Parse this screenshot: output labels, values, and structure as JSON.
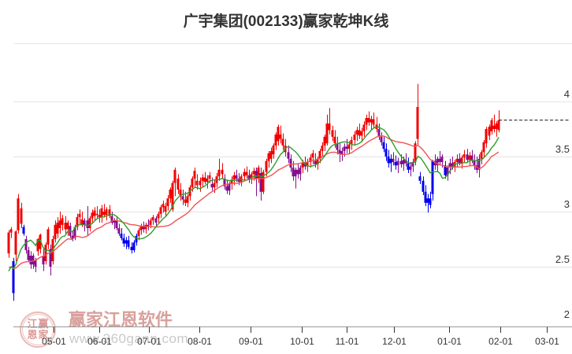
{
  "title": "广宇集团(002133)赢家乾坤K线",
  "watermark": {
    "logo_chars": [
      "江",
      "赢",
      "恩",
      "家"
    ],
    "brand": "赢家江恩软件",
    "url": "www.360gann.com"
  },
  "chart_data": {
    "type": "candlestick",
    "title": "广宇集团(002133)赢家乾坤K线",
    "ylabel": "",
    "xlabel": "",
    "ylim": [
      1.96,
      4.53
    ],
    "grid": true,
    "y_ticks": [
      {
        "label": "4",
        "p": 4
      },
      {
        "label": "3.5",
        "p": 3.5
      },
      {
        "label": "3",
        "p": 3
      },
      {
        "label": "2.5",
        "p": 2.5
      },
      {
        "label": "2",
        "p": 2
      }
    ],
    "x_ticks": [
      [
        "05-01",
        18.3
      ],
      [
        "06-01",
        37
      ],
      [
        "07-01",
        57.2
      ],
      [
        "08-01",
        77.8
      ],
      [
        "09-01",
        98.7
      ],
      [
        "10-01",
        119.6
      ],
      [
        "11-01",
        138
      ],
      [
        "12-01",
        157.2
      ],
      [
        "01-01",
        179.7
      ],
      [
        "02-01",
        200.6
      ],
      [
        "03-01",
        219.6
      ]
    ],
    "last_price": 3.83,
    "ma_periods": {
      "short": 10,
      "long": 25
    },
    "ma_seed_closes_offchart": [
      3.0,
      2.95,
      2.9,
      2.85,
      2.8,
      2.76,
      2.72,
      2.68,
      2.64,
      2.6,
      2.56,
      2.54,
      2.52,
      2.5,
      2.48,
      2.46,
      2.44,
      2.42,
      2.4,
      2.38,
      2.4,
      2.42,
      2.44,
      2.42,
      2.4,
      2.42,
      2.44,
      2.42,
      2.4,
      2.42
    ],
    "colors": {
      "up": "#f20000",
      "down": "#0000f0",
      "transition": "#830e8e",
      "ma_short": "#2f9e2f",
      "ma_long": "#f15454",
      "grid": "#e4e4e4",
      "axis": "#999999",
      "tick": "#333333",
      "label": "#333333",
      "last_price_line": "#111111"
    },
    "candles": [
      [
        2.62,
        2.83,
        2.58,
        2.81,
        "r"
      ],
      [
        2.81,
        2.86,
        2.76,
        2.84,
        "r"
      ],
      [
        2.55,
        2.58,
        2.19,
        2.26,
        "b"
      ],
      [
        2.61,
        2.83,
        2.55,
        2.82,
        "r"
      ],
      [
        2.83,
        3.16,
        2.8,
        3.12,
        "r"
      ],
      [
        2.89,
        3.08,
        2.85,
        3.03,
        "r"
      ],
      [
        2.86,
        2.88,
        2.78,
        2.8,
        "b"
      ],
      [
        2.75,
        2.78,
        2.62,
        2.65,
        "p"
      ],
      [
        2.65,
        2.68,
        2.54,
        2.56,
        "p"
      ],
      [
        2.6,
        2.64,
        2.48,
        2.52,
        "p"
      ],
      [
        2.52,
        2.62,
        2.48,
        2.6,
        "p"
      ],
      [
        2.5,
        2.58,
        2.45,
        2.56,
        "p"
      ],
      [
        2.64,
        2.76,
        2.6,
        2.75,
        "r"
      ],
      [
        2.66,
        2.8,
        2.62,
        2.79,
        "r"
      ],
      [
        2.6,
        2.66,
        2.46,
        2.52,
        "p"
      ],
      [
        2.55,
        2.72,
        2.52,
        2.7,
        "r"
      ],
      [
        2.7,
        2.86,
        2.66,
        2.84,
        "r"
      ],
      [
        2.66,
        2.7,
        2.42,
        2.5,
        "p"
      ],
      [
        2.55,
        2.78,
        2.52,
        2.75,
        "r"
      ],
      [
        2.75,
        2.92,
        2.72,
        2.88,
        "r"
      ],
      [
        2.8,
        2.95,
        2.76,
        2.9,
        "r"
      ],
      [
        2.85,
        3.0,
        2.8,
        2.92,
        "r"
      ],
      [
        2.88,
        2.97,
        2.83,
        2.94,
        "r"
      ],
      [
        2.9,
        2.96,
        2.8,
        2.84,
        "r"
      ],
      [
        2.84,
        2.92,
        2.78,
        2.9,
        "r"
      ],
      [
        2.87,
        2.9,
        2.76,
        2.78,
        "p"
      ],
      [
        2.78,
        2.83,
        2.73,
        2.75,
        "p"
      ],
      [
        2.76,
        2.88,
        2.74,
        2.86,
        "p"
      ],
      [
        2.86,
        2.98,
        2.83,
        2.95,
        "r"
      ],
      [
        2.95,
        3.02,
        2.88,
        2.98,
        "r"
      ],
      [
        2.93,
        3.0,
        2.86,
        2.88,
        "r"
      ],
      [
        2.88,
        2.94,
        2.82,
        2.92,
        "p"
      ],
      [
        2.92,
        3.05,
        2.78,
        2.85,
        "p"
      ],
      [
        2.85,
        2.96,
        2.82,
        2.94,
        "r"
      ],
      [
        2.94,
        3.02,
        2.9,
        2.99,
        "r"
      ],
      [
        2.96,
        3.04,
        2.92,
        3.01,
        "r"
      ],
      [
        2.98,
        3.05,
        2.94,
        2.97,
        "r"
      ],
      [
        2.97,
        3.02,
        2.9,
        2.95,
        "r"
      ],
      [
        2.95,
        3.06,
        2.9,
        3.03,
        "r"
      ],
      [
        3.0,
        3.07,
        2.95,
        2.97,
        "r"
      ],
      [
        2.97,
        3.04,
        2.92,
        3.02,
        "r"
      ],
      [
        3.02,
        3.06,
        2.94,
        2.96,
        "r"
      ],
      [
        2.96,
        3.0,
        2.88,
        2.9,
        "p"
      ],
      [
        2.9,
        2.94,
        2.84,
        2.92,
        "p"
      ],
      [
        2.92,
        2.96,
        2.83,
        2.85,
        "p"
      ],
      [
        2.85,
        2.89,
        2.78,
        2.8,
        "p"
      ],
      [
        2.8,
        2.85,
        2.74,
        2.76,
        "b"
      ],
      [
        2.76,
        2.8,
        2.68,
        2.71,
        "b"
      ],
      [
        2.71,
        2.77,
        2.66,
        2.74,
        "b"
      ],
      [
        2.74,
        2.78,
        2.66,
        2.68,
        "b"
      ],
      [
        2.68,
        2.72,
        2.62,
        2.65,
        "b"
      ],
      [
        2.65,
        2.74,
        2.63,
        2.72,
        "b"
      ],
      [
        2.72,
        2.8,
        2.69,
        2.78,
        "b"
      ],
      [
        2.78,
        2.85,
        2.74,
        2.83,
        "r"
      ],
      [
        2.83,
        2.89,
        2.79,
        2.87,
        "r"
      ],
      [
        2.87,
        2.91,
        2.81,
        2.84,
        "p"
      ],
      [
        2.84,
        2.9,
        2.8,
        2.88,
        "r"
      ],
      [
        2.88,
        2.93,
        2.83,
        2.86,
        "p"
      ],
      [
        2.88,
        2.94,
        2.85,
        2.92,
        "r"
      ],
      [
        2.92,
        2.97,
        2.88,
        2.95,
        "r"
      ],
      [
        2.9,
        2.96,
        2.86,
        2.94,
        "p"
      ],
      [
        2.94,
        3.0,
        2.9,
        2.98,
        "r"
      ],
      [
        2.98,
        3.06,
        2.94,
        3.04,
        "r"
      ],
      [
        3.04,
        3.1,
        2.99,
        3.07,
        "r"
      ],
      [
        3.0,
        3.08,
        2.96,
        3.05,
        "r"
      ],
      [
        3.05,
        3.15,
        3.01,
        3.12,
        "r"
      ],
      [
        3.12,
        3.22,
        3.08,
        3.2,
        "r"
      ],
      [
        3.02,
        3.28,
        3.0,
        3.26,
        "r"
      ],
      [
        3.26,
        3.4,
        3.14,
        3.38,
        "r"
      ],
      [
        3.3,
        3.34,
        3.16,
        3.2,
        "r"
      ],
      [
        3.2,
        3.26,
        3.1,
        3.14,
        "r"
      ],
      [
        3.14,
        3.2,
        3.06,
        3.11,
        "p"
      ],
      [
        3.11,
        3.18,
        3.05,
        3.08,
        "r"
      ],
      [
        3.08,
        3.16,
        3.04,
        3.14,
        "r"
      ],
      [
        3.14,
        3.24,
        3.1,
        3.22,
        "r"
      ],
      [
        3.22,
        3.32,
        3.18,
        3.3,
        "r"
      ],
      [
        3.3,
        3.4,
        3.22,
        3.37,
        "r"
      ],
      [
        3.28,
        3.34,
        3.2,
        3.24,
        "r"
      ],
      [
        3.24,
        3.31,
        3.18,
        3.28,
        "r"
      ],
      [
        3.28,
        3.34,
        3.22,
        3.31,
        "r"
      ],
      [
        3.31,
        3.36,
        3.25,
        3.27,
        "r"
      ],
      [
        3.27,
        3.33,
        3.21,
        3.3,
        "r"
      ],
      [
        3.3,
        3.36,
        3.26,
        3.33,
        "r"
      ],
      [
        3.25,
        3.31,
        3.19,
        3.22,
        "p"
      ],
      [
        3.22,
        3.29,
        3.17,
        3.26,
        "r"
      ],
      [
        3.26,
        3.35,
        3.22,
        3.32,
        "r"
      ],
      [
        3.32,
        3.48,
        3.28,
        3.38,
        "r"
      ],
      [
        3.38,
        3.44,
        3.3,
        3.34,
        "r"
      ],
      [
        3.3,
        3.34,
        3.2,
        3.23,
        "p"
      ],
      [
        3.23,
        3.29,
        3.16,
        3.19,
        "p"
      ],
      [
        3.19,
        3.27,
        3.15,
        3.25,
        "p"
      ],
      [
        3.25,
        3.32,
        3.2,
        3.29,
        "r"
      ],
      [
        3.29,
        3.36,
        3.24,
        3.33,
        "r"
      ],
      [
        3.33,
        3.38,
        3.27,
        3.3,
        "p"
      ],
      [
        3.3,
        3.35,
        3.24,
        3.27,
        "p"
      ],
      [
        3.27,
        3.34,
        3.23,
        3.32,
        "r"
      ],
      [
        3.32,
        3.39,
        3.28,
        3.36,
        "r"
      ],
      [
        3.36,
        3.41,
        3.3,
        3.33,
        "r"
      ],
      [
        3.33,
        3.38,
        3.26,
        3.29,
        "p"
      ],
      [
        3.29,
        3.36,
        3.25,
        3.34,
        "r"
      ],
      [
        3.34,
        3.4,
        3.28,
        3.37,
        "r"
      ],
      [
        3.37,
        3.4,
        3.14,
        3.3,
        "p"
      ],
      [
        3.3,
        3.42,
        3.26,
        3.4,
        "r"
      ],
      [
        3.35,
        3.4,
        3.1,
        3.18,
        "p"
      ],
      [
        3.18,
        3.38,
        3.16,
        3.36,
        "r"
      ],
      [
        3.36,
        3.48,
        3.32,
        3.46,
        "r"
      ],
      [
        3.46,
        3.55,
        3.4,
        3.53,
        "r"
      ],
      [
        3.48,
        3.58,
        3.44,
        3.55,
        "r"
      ],
      [
        3.52,
        3.62,
        3.48,
        3.6,
        "r"
      ],
      [
        3.6,
        3.72,
        3.56,
        3.7,
        "r"
      ],
      [
        3.64,
        3.79,
        3.6,
        3.77,
        "r"
      ],
      [
        3.7,
        3.78,
        3.62,
        3.66,
        "r"
      ],
      [
        3.66,
        3.71,
        3.56,
        3.6,
        "r"
      ],
      [
        3.6,
        3.66,
        3.5,
        3.54,
        "r"
      ],
      [
        3.54,
        3.6,
        3.44,
        3.48,
        "p"
      ],
      [
        3.48,
        3.52,
        3.36,
        3.4,
        "p"
      ],
      [
        3.4,
        3.46,
        3.28,
        3.32,
        "p"
      ],
      [
        3.32,
        3.4,
        3.21,
        3.38,
        "p"
      ],
      [
        3.38,
        3.44,
        3.3,
        3.34,
        "p"
      ],
      [
        3.34,
        3.42,
        3.28,
        3.4,
        "p"
      ],
      [
        3.4,
        3.47,
        3.35,
        3.44,
        "r"
      ],
      [
        3.44,
        3.5,
        3.38,
        3.41,
        "p"
      ],
      [
        3.41,
        3.48,
        3.36,
        3.45,
        "r"
      ],
      [
        3.45,
        3.52,
        3.4,
        3.49,
        "r"
      ],
      [
        3.49,
        3.56,
        3.43,
        3.53,
        "r"
      ],
      [
        3.46,
        3.53,
        3.4,
        3.43,
        "p"
      ],
      [
        3.43,
        3.5,
        3.38,
        3.48,
        "r"
      ],
      [
        3.48,
        3.57,
        3.44,
        3.55,
        "r"
      ],
      [
        3.55,
        3.63,
        3.5,
        3.6,
        "r"
      ],
      [
        3.6,
        3.7,
        3.55,
        3.68,
        "r"
      ],
      [
        3.62,
        3.88,
        3.6,
        3.8,
        "r"
      ],
      [
        3.8,
        3.94,
        3.7,
        3.74,
        "r"
      ],
      [
        3.74,
        3.78,
        3.64,
        3.68,
        "r"
      ],
      [
        3.68,
        3.74,
        3.58,
        3.62,
        "r"
      ],
      [
        3.62,
        3.68,
        3.52,
        3.56,
        "p"
      ],
      [
        3.56,
        3.62,
        3.45,
        3.52,
        "p"
      ],
      [
        3.52,
        3.58,
        3.46,
        3.55,
        "p"
      ],
      [
        3.55,
        3.62,
        3.5,
        3.59,
        "p"
      ],
      [
        3.59,
        3.66,
        3.53,
        3.57,
        "p"
      ],
      [
        3.57,
        3.64,
        3.52,
        3.61,
        "r"
      ],
      [
        3.61,
        3.68,
        3.56,
        3.65,
        "r"
      ],
      [
        3.65,
        3.73,
        3.6,
        3.7,
        "r"
      ],
      [
        3.7,
        3.77,
        3.64,
        3.74,
        "r"
      ],
      [
        3.74,
        3.8,
        3.66,
        3.69,
        "r"
      ],
      [
        3.69,
        3.76,
        3.63,
        3.73,
        "r"
      ],
      [
        3.73,
        3.82,
        3.68,
        3.79,
        "r"
      ],
      [
        3.79,
        3.88,
        3.74,
        3.85,
        "r"
      ],
      [
        3.85,
        3.91,
        3.78,
        3.81,
        "r"
      ],
      [
        3.81,
        3.87,
        3.74,
        3.84,
        "r"
      ],
      [
        3.84,
        3.9,
        3.76,
        3.79,
        "r"
      ],
      [
        3.79,
        3.86,
        3.72,
        3.75,
        "r"
      ],
      [
        3.75,
        3.8,
        3.65,
        3.68,
        "p"
      ],
      [
        3.68,
        3.72,
        3.6,
        3.63,
        "p"
      ],
      [
        3.63,
        3.68,
        3.54,
        3.57,
        "b"
      ],
      [
        3.57,
        3.62,
        3.46,
        3.5,
        "b"
      ],
      [
        3.5,
        3.56,
        3.4,
        3.44,
        "b"
      ],
      [
        3.44,
        3.52,
        3.36,
        3.48,
        "b"
      ],
      [
        3.48,
        3.54,
        3.42,
        3.45,
        "p"
      ],
      [
        3.45,
        3.51,
        3.38,
        3.42,
        "b"
      ],
      [
        3.42,
        3.49,
        3.35,
        3.46,
        "p"
      ],
      [
        3.46,
        3.52,
        3.4,
        3.43,
        "p"
      ],
      [
        3.43,
        3.5,
        3.37,
        3.47,
        "p"
      ],
      [
        3.47,
        3.53,
        3.41,
        3.44,
        "p"
      ],
      [
        3.44,
        3.49,
        3.35,
        3.38,
        "b"
      ],
      [
        3.38,
        3.45,
        3.32,
        3.41,
        "p"
      ],
      [
        3.41,
        3.48,
        3.36,
        3.45,
        "p"
      ],
      [
        3.45,
        3.64,
        3.42,
        3.62,
        "r"
      ],
      [
        3.66,
        4.16,
        3.6,
        3.95,
        "r"
      ],
      [
        3.32,
        3.36,
        3.25,
        3.28,
        "b"
      ],
      [
        3.28,
        3.32,
        3.15,
        3.18,
        "b"
      ],
      [
        3.18,
        3.24,
        3.05,
        3.08,
        "b"
      ],
      [
        3.08,
        3.16,
        2.99,
        3.12,
        "b"
      ],
      [
        3.12,
        3.18,
        3.03,
        3.06,
        "b"
      ],
      [
        3.16,
        3.47,
        3.1,
        3.46,
        "b"
      ],
      [
        3.46,
        3.52,
        3.38,
        3.42,
        "p"
      ],
      [
        3.42,
        3.5,
        3.36,
        3.48,
        "p"
      ],
      [
        3.48,
        3.55,
        3.42,
        3.45,
        "p"
      ],
      [
        3.45,
        3.52,
        3.4,
        3.5,
        "p"
      ],
      [
        3.42,
        3.46,
        3.3,
        3.33,
        "b"
      ],
      [
        3.33,
        3.42,
        3.28,
        3.4,
        "p"
      ],
      [
        3.4,
        3.48,
        3.34,
        3.44,
        "p"
      ],
      [
        3.44,
        3.5,
        3.38,
        3.41,
        "p"
      ],
      [
        3.41,
        3.47,
        3.36,
        3.45,
        "r"
      ],
      [
        3.45,
        3.52,
        3.4,
        3.48,
        "r"
      ],
      [
        3.48,
        3.53,
        3.42,
        3.44,
        "p"
      ],
      [
        3.44,
        3.51,
        3.39,
        3.49,
        "r"
      ],
      [
        3.49,
        3.56,
        3.44,
        3.52,
        "r"
      ],
      [
        3.52,
        3.57,
        3.45,
        3.47,
        "p"
      ],
      [
        3.47,
        3.54,
        3.42,
        3.51,
        "r"
      ],
      [
        3.51,
        3.56,
        3.44,
        3.46,
        "p"
      ],
      [
        3.46,
        3.52,
        3.38,
        3.42,
        "p"
      ],
      [
        3.42,
        3.5,
        3.35,
        3.38,
        "p"
      ],
      [
        3.38,
        3.52,
        3.31,
        3.48,
        "p"
      ],
      [
        3.48,
        3.56,
        3.43,
        3.54,
        "r"
      ],
      [
        3.54,
        3.65,
        3.5,
        3.63,
        "r"
      ],
      [
        3.62,
        3.77,
        3.58,
        3.75,
        "r"
      ],
      [
        3.69,
        3.79,
        3.65,
        3.77,
        "r"
      ],
      [
        3.73,
        3.85,
        3.7,
        3.83,
        "r"
      ],
      [
        3.78,
        3.88,
        3.72,
        3.75,
        "r"
      ],
      [
        3.75,
        3.82,
        3.68,
        3.8,
        "r"
      ],
      [
        3.74,
        3.92,
        3.72,
        3.83,
        "r"
      ]
    ]
  }
}
